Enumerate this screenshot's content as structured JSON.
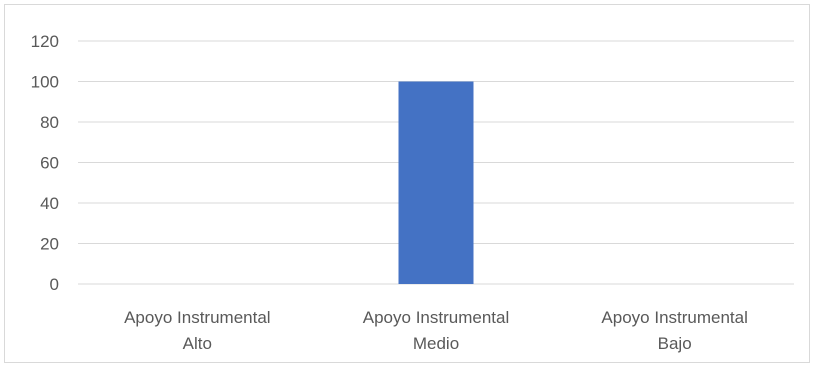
{
  "chart_data": {
    "type": "bar",
    "categories": [
      [
        "Apoyo Instrumental",
        "Alto"
      ],
      [
        "Apoyo Instrumental",
        "Medio"
      ],
      [
        "Apoyo Instrumental",
        "Bajo"
      ]
    ],
    "values": [
      0,
      100,
      0
    ],
    "yticks": [
      "0",
      "20",
      "40",
      "60",
      "80",
      "100",
      "120"
    ],
    "ylim": [
      0,
      120
    ],
    "grid": true,
    "bar_color": "#4472C4",
    "gridline_color": "#d9d9d9",
    "title": "",
    "xlabel": "",
    "ylabel": ""
  }
}
